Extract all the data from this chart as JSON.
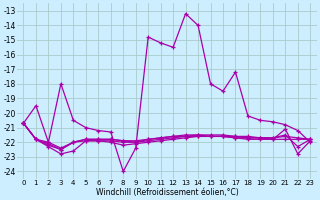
{
  "xlabel": "Windchill (Refroidissement éolien,°C)",
  "bg_color": "#cceeff",
  "grid_color": "#aacccc",
  "line_color": "#aa00aa",
  "xlim": [
    -0.5,
    23.5
  ],
  "ylim": [
    -24.5,
    -12.5
  ],
  "yticks": [
    -13,
    -14,
    -15,
    -16,
    -17,
    -18,
    -19,
    -20,
    -21,
    -22,
    -23,
    -24
  ],
  "xticks": [
    0,
    1,
    2,
    3,
    4,
    5,
    6,
    7,
    8,
    9,
    10,
    11,
    12,
    13,
    14,
    15,
    16,
    17,
    18,
    19,
    20,
    21,
    22,
    23
  ],
  "series": [
    [
      -20.7,
      -19.5,
      -22.0,
      -18.0,
      -20.5,
      -21.0,
      -21.2,
      -21.3,
      -24.0,
      -22.4,
      -14.8,
      -15.2,
      -15.5,
      -13.2,
      -14.0,
      -18.0,
      -18.5,
      -17.2,
      -20.2,
      -20.5,
      -20.6,
      -20.8,
      -21.2,
      -22.0
    ],
    [
      -20.7,
      -21.8,
      -22.1,
      -22.5,
      -22.0,
      -21.8,
      -21.8,
      -21.8,
      -21.9,
      -22.0,
      -21.8,
      -21.7,
      -21.6,
      -21.5,
      -21.5,
      -21.5,
      -21.5,
      -21.6,
      -21.6,
      -21.7,
      -21.7,
      -21.5,
      -22.3,
      -21.8
    ],
    [
      -20.7,
      -21.8,
      -22.2,
      -22.5,
      -22.0,
      -21.9,
      -21.9,
      -21.9,
      -22.0,
      -22.0,
      -21.9,
      -21.8,
      -21.7,
      -21.6,
      -21.6,
      -21.6,
      -21.6,
      -21.7,
      -21.7,
      -21.7,
      -21.7,
      -21.6,
      -21.7,
      -21.8
    ],
    [
      -20.7,
      -21.8,
      -22.0,
      -22.4,
      -22.0,
      -21.8,
      -21.8,
      -21.8,
      -21.9,
      -21.9,
      -21.8,
      -21.7,
      -21.6,
      -21.6,
      -21.5,
      -21.6,
      -21.6,
      -21.6,
      -21.7,
      -21.7,
      -21.8,
      -21.8,
      -21.8,
      -21.8
    ],
    [
      -20.7,
      -21.8,
      -22.3,
      -22.8,
      -22.6,
      -21.9,
      -21.9,
      -22.0,
      -22.2,
      -22.1,
      -22.0,
      -21.9,
      -21.8,
      -21.7,
      -21.6,
      -21.6,
      -21.6,
      -21.7,
      -21.8,
      -21.8,
      -21.8,
      -21.1,
      -22.8,
      -21.9
    ]
  ]
}
